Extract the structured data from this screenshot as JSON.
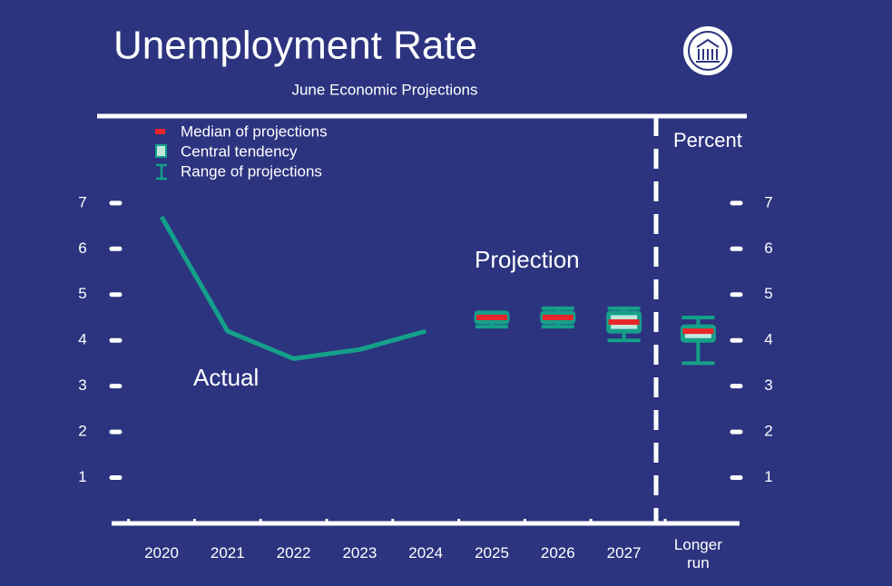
{
  "chart_data": {
    "type": "fomc-projection",
    "title": "Unemployment Rate",
    "subtitle": "June Economic Projections",
    "y_label": "Percent",
    "categories": [
      "2020",
      "2021",
      "2022",
      "2023",
      "2024",
      "2025",
      "2026",
      "2027",
      "Longer run"
    ],
    "ylim": [
      0,
      8.9
    ],
    "yticks": [
      1,
      2,
      3,
      4,
      5,
      6,
      7
    ],
    "actual": {
      "label": "Actual",
      "color": "#15a08a",
      "values": [
        6.7,
        4.2,
        3.6,
        3.8,
        4.2,
        null,
        null,
        null,
        null
      ]
    },
    "projection_label": "Projection",
    "median": {
      "name": "Median of projections",
      "color": "#e8262a",
      "values": [
        null,
        null,
        null,
        null,
        null,
        4.5,
        4.5,
        4.4,
        4.2
      ]
    },
    "central_tendency": {
      "name": "Central tendency",
      "color": "#15a08a",
      "fill": "#bfe9dc",
      "low": [
        null,
        null,
        null,
        null,
        null,
        4.4,
        4.4,
        4.2,
        4.0
      ],
      "high": [
        null,
        null,
        null,
        null,
        null,
        4.6,
        4.6,
        4.6,
        4.3
      ]
    },
    "range": {
      "name": "Range of projections",
      "color": "#15a08a",
      "low": [
        null,
        null,
        null,
        null,
        null,
        4.3,
        4.3,
        4.0,
        3.5
      ],
      "high": [
        null,
        null,
        null,
        null,
        null,
        4.6,
        4.7,
        4.7,
        4.5
      ]
    }
  }
}
